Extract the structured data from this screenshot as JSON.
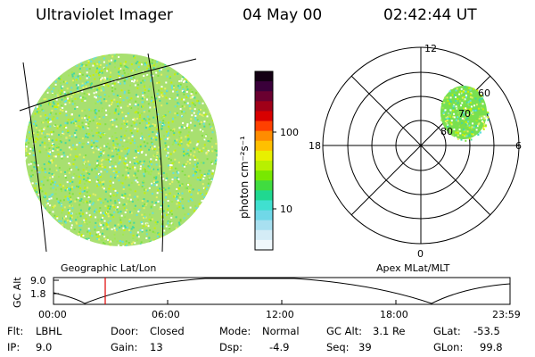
{
  "header": {
    "instrument": "Ultraviolet Imager",
    "date": "04 May 00",
    "time": "02:42:44 UT"
  },
  "colorbar": {
    "unit_label": "photon cm⁻²s⁻¹",
    "ticks": [
      "100",
      "10"
    ],
    "colors": [
      "#140014",
      "#3a003a",
      "#6a0030",
      "#a00018",
      "#d80000",
      "#ff4000",
      "#ff8c00",
      "#ffc000",
      "#e8f000",
      "#b8f000",
      "#78e800",
      "#40dc40",
      "#20d890",
      "#40e0d0",
      "#70d8e8",
      "#a8e0f0",
      "#d4ecf6",
      "#f0f8fc"
    ]
  },
  "left_panel": {
    "caption": "Geographic Lat/Lon"
  },
  "polar_plot": {
    "caption": "Apex MLat/MLT",
    "mlt_labels": {
      "top": "12",
      "left": "18",
      "right": "6",
      "bottom": "0"
    },
    "mlat_labels": [
      "80",
      "70",
      "60"
    ]
  },
  "altitude_strip": {
    "ylabel": "GC Alt",
    "yticks": [
      "9.0",
      "1.8"
    ],
    "xticks": [
      "00:00",
      "06:00",
      "12:00",
      "18:00",
      "23:59"
    ],
    "marker_time": "02:42:44"
  },
  "info": {
    "flt": {
      "label": "Flt:",
      "value": "LBHL"
    },
    "ip": {
      "label": "IP:",
      "value": "9.0"
    },
    "door": {
      "label": "Door:",
      "value": "Closed"
    },
    "gain": {
      "label": "Gain:",
      "value": "13"
    },
    "mode": {
      "label": "Mode:",
      "value": "Normal"
    },
    "dsp": {
      "label": "Dsp:",
      "value": "-4.9"
    },
    "gcalt": {
      "label": "GC Alt:",
      "value": "3.1 Re"
    },
    "seq": {
      "label": "Seq:",
      "value": "39"
    },
    "glat": {
      "label": "GLat:",
      "value": "-53.5"
    },
    "glon": {
      "label": "GLon:",
      "value": "99.8"
    }
  }
}
